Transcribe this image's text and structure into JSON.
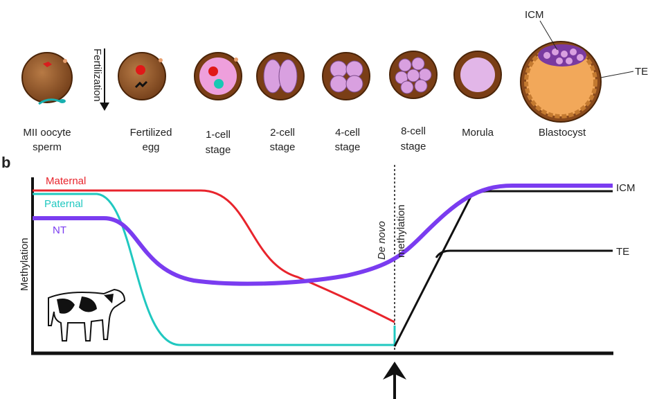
{
  "top": {
    "fertilization": "Fertilization",
    "stages": [
      [
        "MII oocyte",
        "sperm"
      ],
      [
        "Fertilized",
        "egg"
      ],
      [
        "1-cell",
        "stage"
      ],
      [
        "2-cell",
        "stage"
      ],
      [
        "4-cell",
        "stage"
      ],
      [
        "8-cell",
        "stage"
      ],
      [
        "Morula"
      ],
      [
        "Blastocyst"
      ]
    ],
    "icm": "ICM",
    "te": "TE"
  },
  "panel": {
    "label": "b",
    "y_axis": "Methylation",
    "curves": {
      "maternal": "Maternal",
      "paternal": "Paternal",
      "nt": "NT"
    },
    "de_novo": "De novo",
    "methylation": "methylation",
    "icm": "ICM",
    "te": "TE"
  }
}
